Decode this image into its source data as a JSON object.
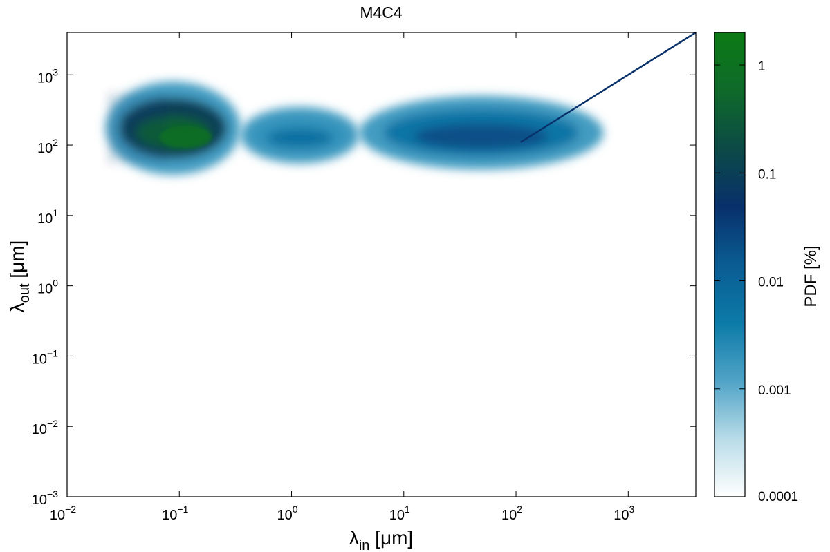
{
  "chart_data": {
    "type": "heatmap",
    "title": "M4C4",
    "xlabel": {
      "main": "λ",
      "sub": "in",
      "unit": " [μm]"
    },
    "ylabel": {
      "main": "λ",
      "sub": "out",
      "unit": " [μm]"
    },
    "xscale": "log",
    "yscale": "log",
    "xlim": [
      0.01,
      4000
    ],
    "ylim": [
      0.001,
      4000
    ],
    "x_ticks": [
      {
        "base": "10",
        "exp": "−2",
        "value": 0.01
      },
      {
        "base": "10",
        "exp": "−1",
        "value": 0.1
      },
      {
        "base": "10",
        "exp": "0",
        "value": 1
      },
      {
        "base": "10",
        "exp": "1",
        "value": 10
      },
      {
        "base": "10",
        "exp": "2",
        "value": 100
      },
      {
        "base": "10",
        "exp": "3",
        "value": 1000
      }
    ],
    "y_ticks": [
      {
        "base": "10",
        "exp": "−3",
        "value": 0.001
      },
      {
        "base": "10",
        "exp": "−2",
        "value": 0.01
      },
      {
        "base": "10",
        "exp": "−1",
        "value": 0.1
      },
      {
        "base": "10",
        "exp": "0",
        "value": 1
      },
      {
        "base": "10",
        "exp": "1",
        "value": 10
      },
      {
        "base": "10",
        "exp": "2",
        "value": 100
      },
      {
        "base": "10",
        "exp": "3",
        "value": 1000
      }
    ],
    "colorbar": {
      "label": "PDF [%]",
      "scale": "log",
      "range": [
        0.0001,
        2
      ],
      "ticks": [
        {
          "label": "1",
          "value": 1
        },
        {
          "label": "0.1",
          "value": 0.1
        },
        {
          "label": "0.01",
          "value": 0.01
        },
        {
          "label": "0.001",
          "value": 0.001
        },
        {
          "label": "0.0001",
          "value": 0.0001
        }
      ],
      "colormap": [
        "#ffffff",
        "#b9dce8",
        "#4fa3c7",
        "#0c7aa8",
        "#0a5c93",
        "#08306b",
        "#0c4a46",
        "#0f6a2a",
        "#0b7a14"
      ]
    },
    "density_regions": [
      {
        "x_range": [
          0.022,
          0.35
        ],
        "y_range": [
          38,
          800
        ],
        "peak_pdf": 0.4
      },
      {
        "x_range": [
          0.35,
          4
        ],
        "y_range": [
          55,
          350
        ],
        "peak_pdf": 0.006
      },
      {
        "x_range": [
          4,
          600
        ],
        "y_range": [
          45,
          500
        ],
        "peak_pdf": 0.02
      }
    ],
    "diagonal_line": {
      "x_range": [
        110,
        4000
      ],
      "relation": "λ_out = λ_in",
      "pdf": 0.05
    }
  }
}
